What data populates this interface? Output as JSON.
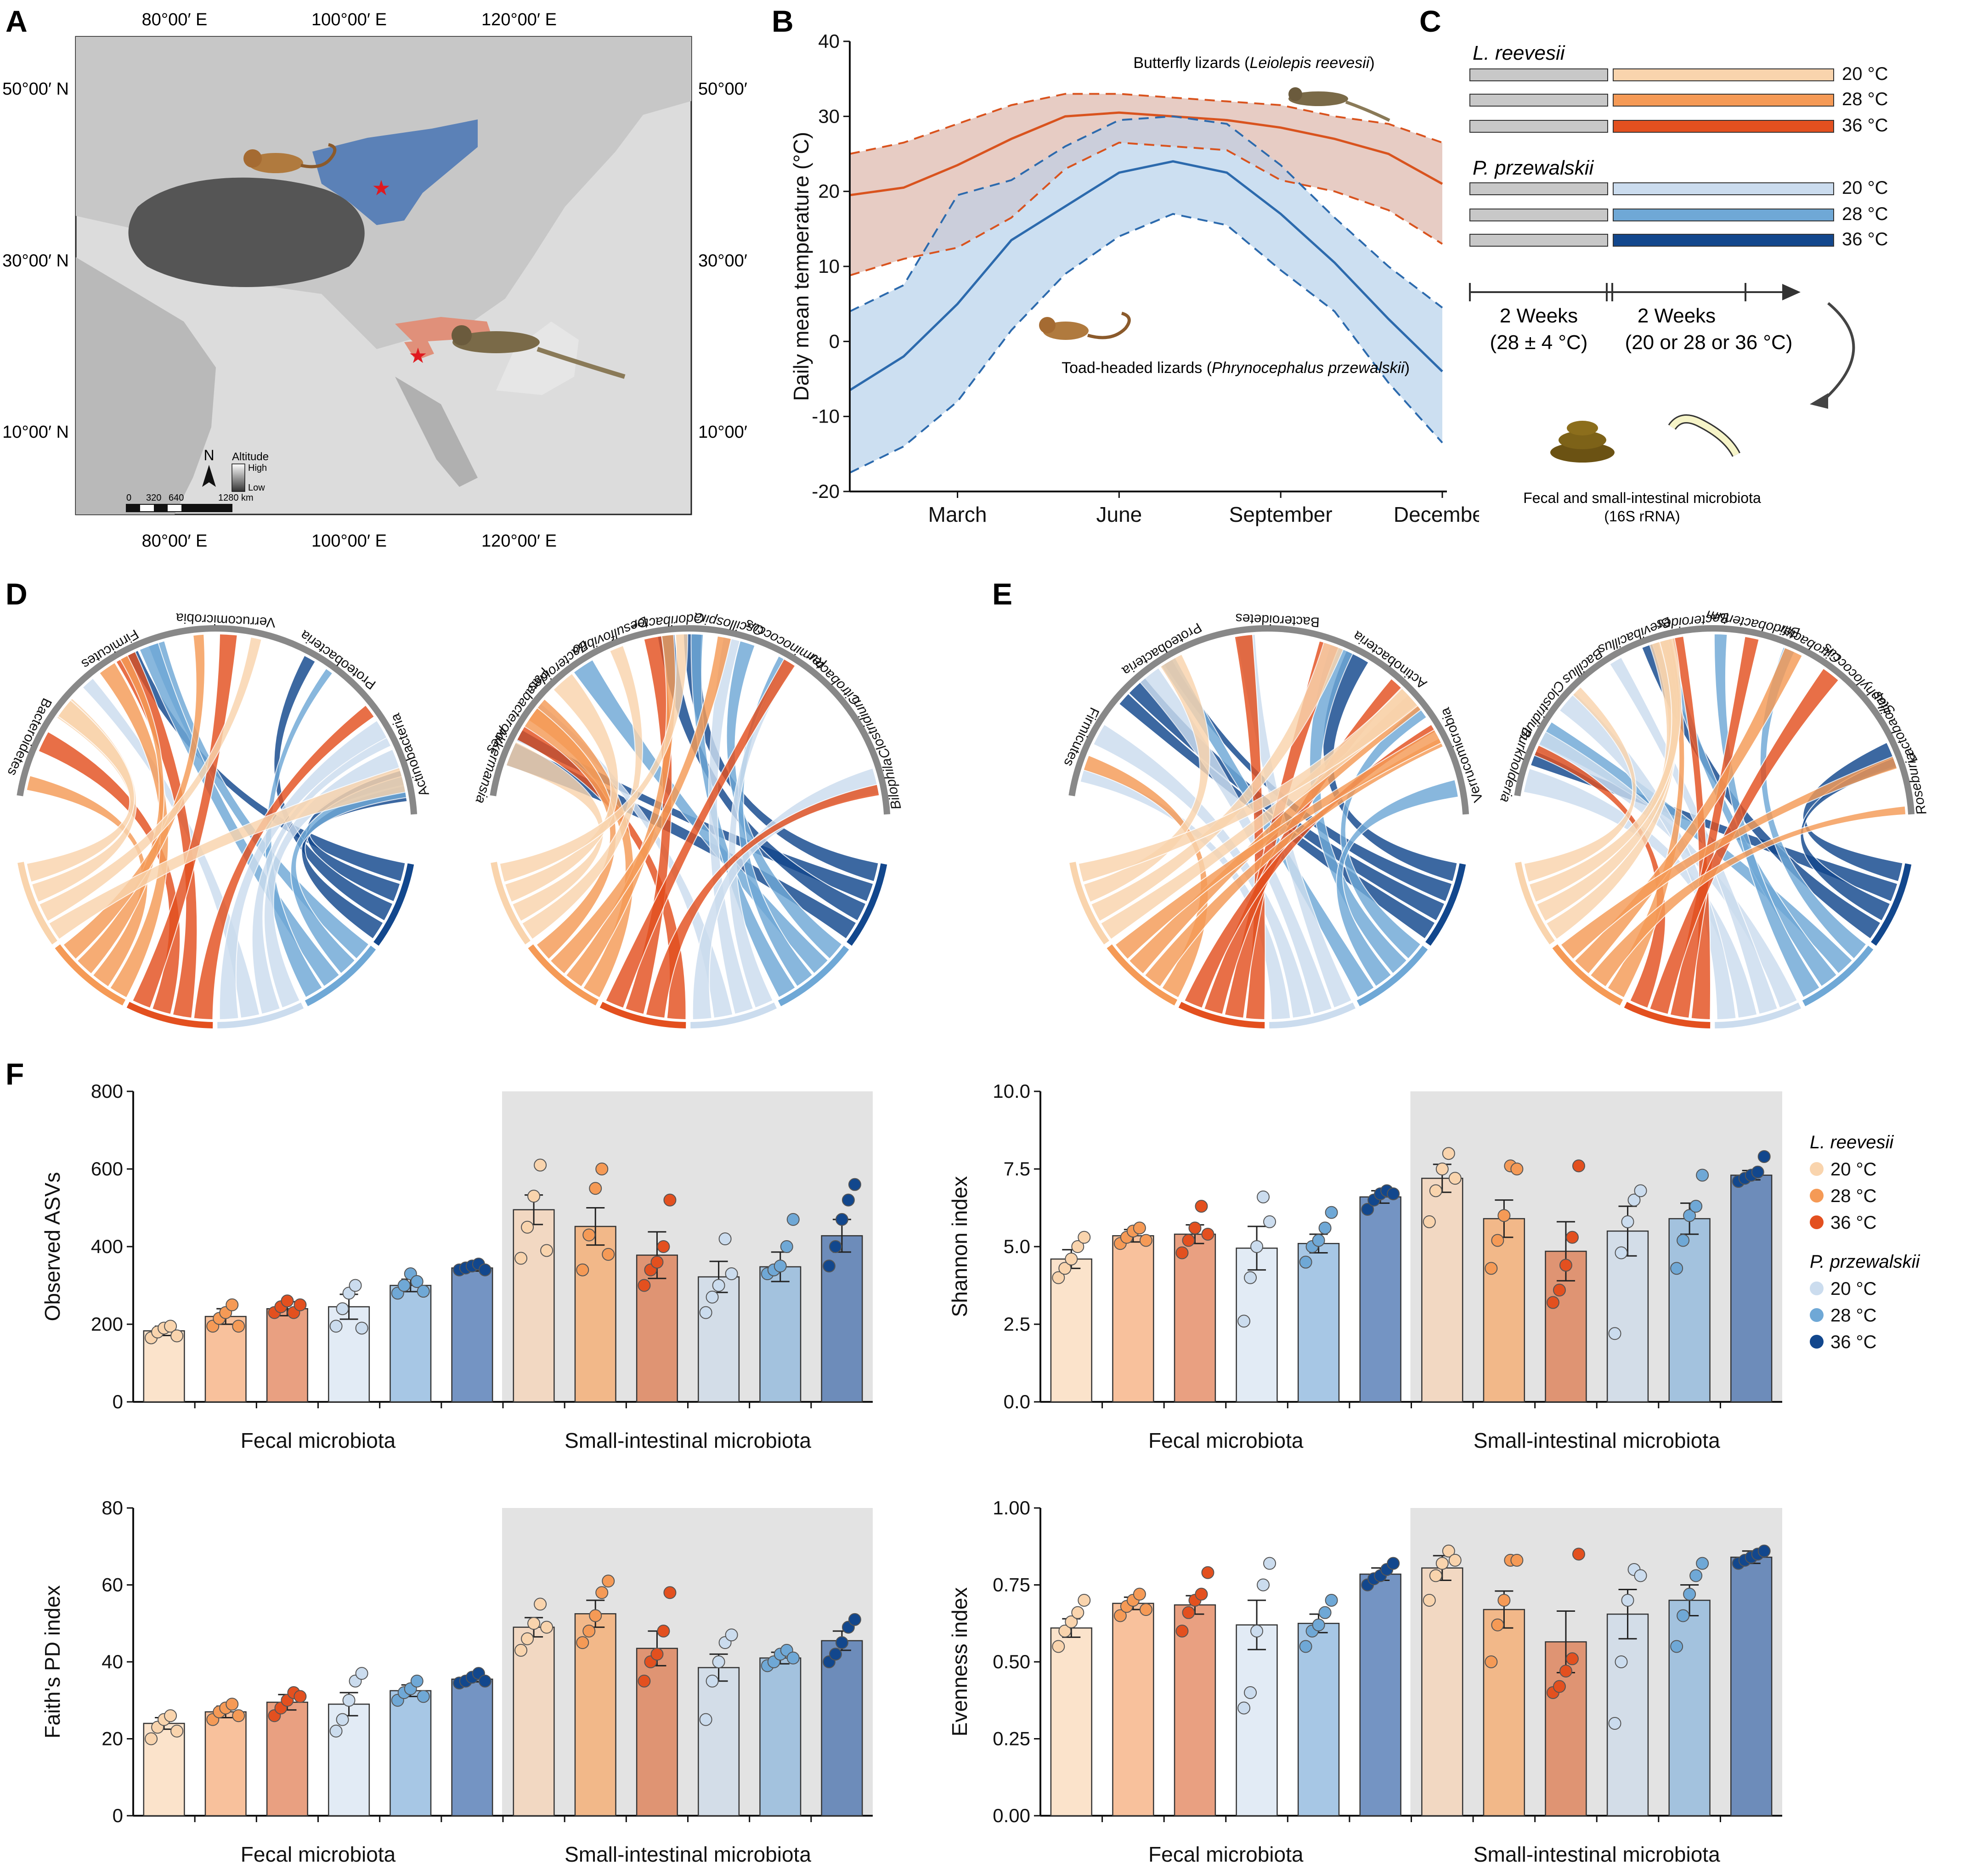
{
  "panels": {
    "a": "A",
    "b": "B",
    "c": "C",
    "d": "D",
    "e": "E",
    "f": "F"
  },
  "colors": {
    "lr20": "#f9d4ad",
    "lr28": "#f59a56",
    "lr36": "#e3501f",
    "pp20": "#cbdcee",
    "pp28": "#6fa8d6",
    "pp36": "#12478d",
    "lr20bar": "#fbe3cb",
    "lr28bar": "#f8c19c",
    "lr36bar": "#e9a081",
    "pp20bar": "#e2ebf5",
    "pp28bar": "#a7c7e5",
    "pp36bar": "#7494c3",
    "lr20sib": "#f2d8c2",
    "lr28sib": "#f2b889",
    "lr36sib": "#df9473",
    "pp20sib": "#d3dde8",
    "pp28sib": "#a3c2de",
    "pp36sib": "#6d8cba",
    "redline": "#d9531e",
    "blueline": "#2c6aad",
    "redband": "#f6d3c2",
    "blueband": "#c6dbef",
    "overlap": "#c9b8bd",
    "blueregion": "#4f79b5",
    "redregion": "#e0907a",
    "shade": "#e3e3e3",
    "gray": "#c8c8c8"
  },
  "map": {
    "top_ticks": [
      "80°00′ E",
      "100°00′ E",
      "120°00′ E"
    ],
    "bottom_ticks": [
      "80°00′ E",
      "100°00′ E",
      "120°00′ E"
    ],
    "left_ticks": [
      "50°00′ N",
      "30°00′ N",
      "10°00′ N"
    ],
    "right_ticks": [
      "50°00′ N",
      "30°00′ N",
      "10°00′ N"
    ],
    "north": "N",
    "altitude_label": "Altitude",
    "altitude_high": "High",
    "altitude_low": "Low",
    "scale_labels": [
      "0",
      "320",
      "640",
      "1280 km"
    ],
    "star_icon": "red-star-icon"
  },
  "chart_b": {
    "ylabel": "Daily mean temperature (°C)",
    "yticks": [
      "40",
      "30",
      "20",
      "10",
      "0",
      "-10",
      "-20"
    ],
    "xticks": [
      "March",
      "June",
      "September",
      "December"
    ],
    "label_red_pre": "Butterfly lizards (",
    "label_red_it": "Leiolepis reevesii",
    "label_red_post": ")",
    "label_blue_pre": "Toad-headed lizards (",
    "label_blue_it": "Phrynocephalus przewalskii",
    "label_blue_post": ")"
  },
  "chart_data": [
    {
      "type": "line",
      "title": "Daily mean temperature",
      "xlabel": "",
      "ylabel": "Daily mean temperature (°C)",
      "ylim": [
        -20,
        40
      ],
      "x": [
        1,
        2,
        3,
        4,
        5,
        6,
        7,
        8,
        9,
        10,
        11,
        12
      ],
      "series": [
        {
          "name": "Butterfly lizards (Leiolepis reevesii)",
          "mean": [
            19.5,
            20.5,
            23.5,
            27.0,
            30.0,
            30.5,
            30.0,
            29.5,
            28.5,
            27.0,
            25.0,
            21.0
          ],
          "upper": [
            25.0,
            26.5,
            29.0,
            31.5,
            33.0,
            33.0,
            32.5,
            32.0,
            31.5,
            30.0,
            29.0,
            26.5
          ],
          "lower": [
            8.8,
            11.0,
            12.5,
            16.5,
            23.0,
            26.5,
            26.0,
            25.5,
            21.5,
            20.0,
            17.5,
            13.0
          ]
        },
        {
          "name": "Toad-headed lizards (Phrynocephalus przewalskii)",
          "mean": [
            -6.5,
            -2.0,
            5.0,
            13.5,
            18.0,
            22.5,
            24.0,
            22.5,
            17.0,
            10.5,
            3.0,
            -4.0
          ],
          "upper": [
            4.0,
            7.5,
            19.5,
            21.5,
            26.0,
            29.5,
            30.0,
            29.0,
            23.5,
            16.5,
            10.0,
            4.5
          ],
          "lower": [
            -17.5,
            -14.0,
            -8.0,
            1.5,
            9.0,
            14.0,
            17.0,
            15.5,
            9.5,
            4.0,
            -5.5,
            -13.5
          ]
        }
      ]
    },
    {
      "type": "bar",
      "title": "Observed ASVs",
      "ylabel": "Observed ASVs",
      "ylim": [
        0,
        800
      ],
      "yticks": [
        0,
        200,
        400,
        600,
        800
      ],
      "categories": [
        "Fecal L20",
        "Fecal L28",
        "Fecal L36",
        "Fecal P20",
        "Fecal P28",
        "Fecal P36",
        "SI L20",
        "SI L28",
        "SI L36",
        "SI P20",
        "SI P28",
        "SI P36"
      ],
      "values": [
        183,
        220,
        240,
        245,
        300,
        345,
        495,
        452,
        378,
        322,
        348,
        428
      ],
      "errors": [
        12,
        20,
        18,
        32,
        16,
        8,
        38,
        48,
        60,
        40,
        38,
        42
      ],
      "points": [
        [
          165,
          180,
          190,
          195,
          170
        ],
        [
          195,
          215,
          230,
          250,
          195
        ],
        [
          230,
          245,
          260,
          230,
          250
        ],
        [
          195,
          240,
          280,
          300,
          190
        ],
        [
          280,
          300,
          330,
          310,
          285
        ],
        [
          340,
          345,
          350,
          355,
          340
        ],
        [
          370,
          450,
          530,
          610,
          390
        ],
        [
          340,
          430,
          550,
          600,
          380
        ],
        [
          300,
          340,
          360,
          400,
          520
        ],
        [
          230,
          270,
          300,
          420,
          330
        ],
        [
          330,
          340,
          350,
          400,
          470
        ],
        [
          350,
          400,
          470,
          520,
          560
        ]
      ]
    },
    {
      "type": "bar",
      "title": "Shannon index",
      "ylabel": "Shannon index",
      "ylim": [
        0,
        10
      ],
      "yticks": [
        0.0,
        2.5,
        5.0,
        7.5,
        10.0
      ],
      "categories": [
        "Fecal L20",
        "Fecal L28",
        "Fecal L36",
        "Fecal P20",
        "Fecal P28",
        "Fecal P36",
        "SI L20",
        "SI L28",
        "SI L36",
        "SI P20",
        "SI P28",
        "SI P36"
      ],
      "values": [
        4.6,
        5.35,
        5.4,
        4.95,
        5.1,
        6.6,
        7.2,
        5.9,
        4.85,
        5.5,
        5.9,
        7.3
      ],
      "errors": [
        0.3,
        0.2,
        0.3,
        0.7,
        0.3,
        0.2,
        0.45,
        0.6,
        0.95,
        0.8,
        0.5,
        0.15
      ],
      "points": [
        [
          4.0,
          4.3,
          4.6,
          5.0,
          5.3
        ],
        [
          5.1,
          5.3,
          5.5,
          5.6,
          5.2
        ],
        [
          4.8,
          5.2,
          5.6,
          6.3,
          5.4
        ],
        [
          2.6,
          4.0,
          5.0,
          6.6,
          5.8
        ],
        [
          4.5,
          5.0,
          5.2,
          5.6,
          6.1
        ],
        [
          6.2,
          6.5,
          6.7,
          6.8,
          6.7
        ],
        [
          5.8,
          6.8,
          7.5,
          8.0,
          7.2
        ],
        [
          4.3,
          5.2,
          6.0,
          7.6,
          7.5
        ],
        [
          3.2,
          3.6,
          4.4,
          5.3,
          7.6
        ],
        [
          2.2,
          4.8,
          5.8,
          6.5,
          6.8
        ],
        [
          4.3,
          5.2,
          6.0,
          6.3,
          7.3
        ],
        [
          7.1,
          7.2,
          7.3,
          7.4,
          7.9
        ]
      ]
    },
    {
      "type": "bar",
      "title": "Faith's PD index",
      "ylabel": "Faith's PD index",
      "ylim": [
        0,
        80
      ],
      "yticks": [
        0,
        20,
        40,
        60,
        80
      ],
      "categories": [
        "Fecal L20",
        "Fecal L28",
        "Fecal L36",
        "Fecal P20",
        "Fecal P28",
        "Fecal P36",
        "SI L20",
        "SI L28",
        "SI L36",
        "SI P20",
        "SI P28",
        "SI P36"
      ],
      "values": [
        24,
        27,
        29.5,
        29,
        32.5,
        35.5,
        49,
        52.5,
        43.5,
        38.5,
        41,
        45.5
      ],
      "errors": [
        1.5,
        1.5,
        2,
        3,
        1.5,
        0.7,
        2.5,
        3.5,
        4.5,
        3.5,
        1.5,
        2.5
      ],
      "points": [
        [
          20,
          23,
          25,
          26,
          22
        ],
        [
          25,
          27,
          28,
          29,
          26
        ],
        [
          26,
          28,
          30,
          32,
          31
        ],
        [
          22,
          25,
          30,
          35,
          37
        ],
        [
          30,
          32,
          33,
          35,
          31
        ],
        [
          34.5,
          35,
          36,
          37,
          35
        ],
        [
          43,
          46,
          50,
          55,
          49
        ],
        [
          45,
          48,
          52,
          58,
          61
        ],
        [
          35,
          40,
          42,
          48,
          58
        ],
        [
          25,
          35,
          40,
          45,
          47
        ],
        [
          39,
          40,
          42,
          43,
          41
        ],
        [
          40,
          42,
          45,
          49,
          51
        ]
      ]
    },
    {
      "type": "bar",
      "title": "Evenness index",
      "ylabel": "Evenness index",
      "ylim": [
        0,
        1
      ],
      "yticks": [
        0.0,
        0.25,
        0.5,
        0.75,
        1.0
      ],
      "categories": [
        "Fecal L20",
        "Fecal L28",
        "Fecal L36",
        "Fecal P20",
        "Fecal P28",
        "Fecal P36",
        "SI L20",
        "SI L28",
        "SI L36",
        "SI P20",
        "SI P28",
        "SI P36"
      ],
      "values": [
        0.61,
        0.69,
        0.685,
        0.62,
        0.625,
        0.785,
        0.805,
        0.67,
        0.565,
        0.655,
        0.7,
        0.84
      ],
      "errors": [
        0.03,
        0.02,
        0.03,
        0.08,
        0.03,
        0.02,
        0.04,
        0.06,
        0.1,
        0.08,
        0.05,
        0.02
      ],
      "points": [
        [
          0.55,
          0.6,
          0.63,
          0.66,
          0.7
        ],
        [
          0.65,
          0.68,
          0.7,
          0.72,
          0.67
        ],
        [
          0.6,
          0.66,
          0.7,
          0.72,
          0.79
        ],
        [
          0.35,
          0.4,
          0.6,
          0.75,
          0.82
        ],
        [
          0.55,
          0.6,
          0.62,
          0.66,
          0.7
        ],
        [
          0.75,
          0.77,
          0.78,
          0.8,
          0.82
        ],
        [
          0.7,
          0.78,
          0.82,
          0.86,
          0.83
        ],
        [
          0.5,
          0.62,
          0.7,
          0.83,
          0.83
        ],
        [
          0.4,
          0.42,
          0.47,
          0.51,
          0.85
        ],
        [
          0.3,
          0.5,
          0.7,
          0.8,
          0.78
        ],
        [
          0.55,
          0.65,
          0.72,
          0.78,
          0.82
        ],
        [
          0.82,
          0.83,
          0.84,
          0.85,
          0.86
        ]
      ]
    }
  ],
  "bar_panel": {
    "group_fecal": "Fecal microbiota",
    "group_si": "Small-intestinal microbiota"
  },
  "legend_f": {
    "lr_title": "L. reevesii",
    "pp_title": "P. przewalskii",
    "items": [
      "20 °C",
      "28 °C",
      "36 °C"
    ]
  },
  "design_c": {
    "lr_title": "L. reevesii",
    "pp_title": "P. przewalskii",
    "temps": [
      "20 °C",
      "28 °C",
      "36 °C"
    ],
    "period1": "2 Weeks",
    "period1_sub": "(28 ± 4 °C)",
    "period2": "2 Weeks",
    "period2_sub": "(20 or 28 or 36 °C)",
    "sample_label": "Fecal and small-intestinal microbiota",
    "sample_sub": "(16S rRNA)"
  },
  "chord_d1": {
    "labels": [
      "Bacteroidetes",
      "Firmicutes",
      "Verrucomicrobia",
      "Proteobacteria",
      "Actinobacteria"
    ]
  },
  "chord_d2": {
    "labels": [
      "Akkermansia",
      "Parabacteroides",
      "Bacteroides",
      "Desulfovibrio",
      "Odoribacter",
      "Oscillospira",
      "Ruminococcus",
      "Citrobacter",
      "Clostridium",
      "Bilophila"
    ]
  },
  "chord_e1": {
    "labels": [
      "Firmicutes",
      "Proteobacteria",
      "Bacteroidetes",
      "Actinobacteria",
      "Verrucomicrobia"
    ]
  },
  "chord_e2": {
    "labels": [
      "Burkholderia",
      "Clostridium",
      "Bacillus",
      "Brevibacillus",
      "Bacteroides",
      "Bifidobacterium",
      "Citrobacter",
      "Staphylococcus",
      "Lactobacillus",
      "Roseburia"
    ]
  }
}
